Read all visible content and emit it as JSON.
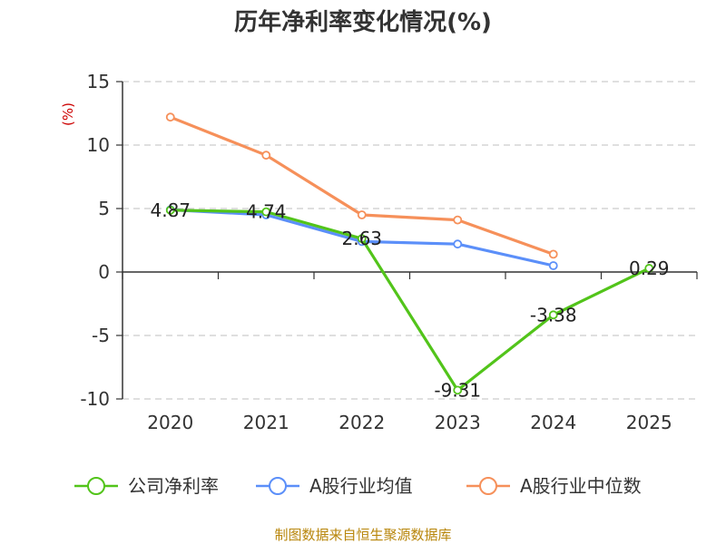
{
  "chart_data": {
    "type": "line",
    "title": "历年净利率变化情况(%)",
    "ylabel": "(%)",
    "xlabel": "",
    "categories": [
      "2020",
      "2021",
      "2022",
      "2023",
      "2024",
      "2025"
    ],
    "ylim": [
      -10,
      15
    ],
    "yticks": [
      15,
      10,
      5,
      0,
      -5,
      -10
    ],
    "grid": true,
    "legend_position": "bottom",
    "series": [
      {
        "name": "公司净利率",
        "color": "#52c41a",
        "values": [
          4.87,
          4.74,
          2.63,
          -9.31,
          -3.38,
          0.29
        ],
        "labels": [
          "4.87",
          "4.74",
          "2.63",
          "-9.31",
          "-3.38",
          "0.29"
        ]
      },
      {
        "name": "A股行业均值",
        "color": "#5b8ff9",
        "values": [
          4.9,
          4.5,
          2.4,
          2.2,
          0.5,
          null
        ]
      },
      {
        "name": "A股行业中位数",
        "color": "#f6905a",
        "values": [
          12.2,
          9.2,
          4.5,
          4.1,
          1.4,
          null
        ]
      }
    ],
    "source": "制图数据来自恒生聚源数据库",
    "ylabel_color": "#cc0000",
    "source_color": "#b8860b"
  }
}
